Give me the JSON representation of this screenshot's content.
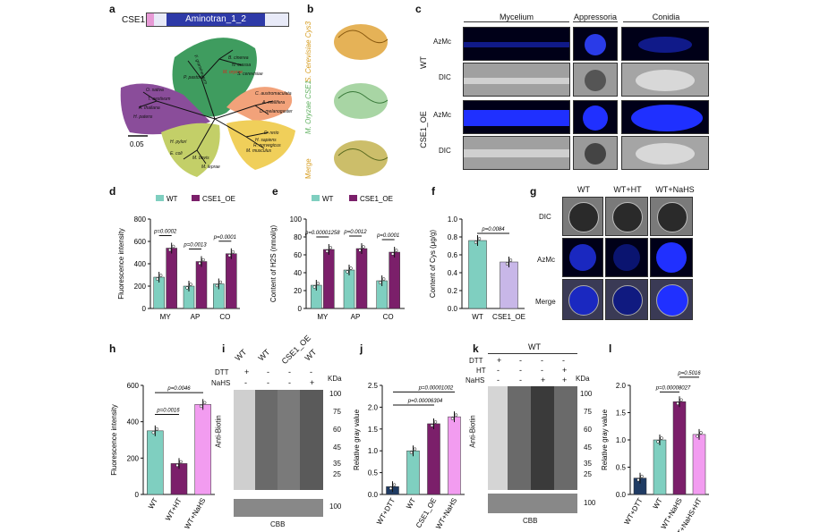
{
  "panels": {
    "a": "a",
    "b": "b",
    "c": "c",
    "d": "d",
    "e": "e",
    "f": "f",
    "g": "g",
    "h": "h",
    "i": "i",
    "j": "j",
    "k": "k",
    "l": "l"
  },
  "panel_a": {
    "gene_label": "CSE1",
    "domain_label": "Aminotran_1_2",
    "scale": "0.05",
    "clades": {
      "plants": [
        "O. sativa",
        "T. aestivum",
        "A. thaliana",
        "H. patens"
      ],
      "fungi": [
        "F. graminearum",
        "B. cinerea",
        "N. crassa",
        "M. oryzae",
        "S. cerevisiae",
        "P. pastoris"
      ],
      "insects": [
        "A. mellifera",
        "D. melanogaster",
        "C. austromaculata"
      ],
      "vertebrates": [
        "D. rerio",
        "H. sapiens",
        "M. musculus",
        "R. norvegicus"
      ],
      "bacteria": [
        "H. pylori",
        "E. coli",
        "M. bovis",
        "M. leprae"
      ]
    }
  },
  "panel_b": {
    "labels": [
      "S. Cerevisiae Cys3",
      "M. Oryzae CSE1",
      "Merge"
    ]
  },
  "panel_c": {
    "columns": [
      "Mycelium",
      "Appressoria",
      "Conidia"
    ],
    "groups": [
      "WT",
      "CSE1_OE"
    ],
    "rows": [
      "AzMc",
      "DIC"
    ]
  },
  "panel_d": {
    "chart_data": {
      "type": "bar",
      "categories": [
        "MY",
        "AP",
        "CO"
      ],
      "series": [
        {
          "name": "WT",
          "values": [
            280,
            200,
            220
          ]
        },
        {
          "name": "CSE1_OE",
          "values": [
            540,
            420,
            490
          ]
        }
      ],
      "ylabel": "Fluorescence intensity",
      "ylim": [
        0,
        800
      ],
      "yticks": [
        "0",
        "200",
        "400",
        "600",
        "800"
      ],
      "pvalues": [
        "p=0.0002",
        "p=0.0013",
        "p=0.0001"
      ]
    }
  },
  "panel_e": {
    "chart_data": {
      "type": "bar",
      "categories": [
        "MY",
        "AP",
        "CO"
      ],
      "series": [
        {
          "name": "WT",
          "values": [
            26,
            43,
            31
          ]
        },
        {
          "name": "CSE1_OE",
          "values": [
            66,
            67,
            63
          ]
        }
      ],
      "ylabel": "Content of H2S (nmol/g)",
      "ylim": [
        0,
        100
      ],
      "yticks": [
        "0",
        "20",
        "40",
        "60",
        "80",
        "100"
      ],
      "pvalues": [
        "p=0.00001258",
        "p=0.0012",
        "p=0.0001"
      ]
    }
  },
  "panel_f": {
    "chart_data": {
      "type": "bar",
      "categories": [
        "WT",
        "CSE1_OE"
      ],
      "values": [
        0.76,
        0.52
      ],
      "ylabel": "Content of Cys (μg/g)",
      "ylim": [
        0,
        1.0
      ],
      "yticks": [
        "0.0",
        "0.2",
        "0.4",
        "0.6",
        "0.8",
        "1.0"
      ],
      "pvalue": "p=0.0084"
    }
  },
  "panel_g": {
    "columns": [
      "WT",
      "WT+HT",
      "WT+NaHS"
    ],
    "rows": [
      "DIC",
      "AzMc",
      "Merge"
    ]
  },
  "panel_h": {
    "chart_data": {
      "type": "bar",
      "categories": [
        "WT",
        "WT+HT",
        "WT+NaHS"
      ],
      "values": [
        350,
        170,
        495
      ],
      "ylabel": "Fluorescence intensity",
      "ylim": [
        0,
        600
      ],
      "yticks": [
        "0",
        "200",
        "400",
        "600"
      ],
      "pvalues": [
        "p=0.0016",
        "p=0.0046"
      ]
    }
  },
  "panel_i": {
    "lanes": [
      "WT",
      "WT",
      "CSE1_OE",
      "WT"
    ],
    "dtt": [
      "+",
      "-",
      "-",
      "-"
    ],
    "nahs": [
      "-",
      "-",
      "-",
      "+"
    ],
    "row_dtt": "DTT",
    "row_nahs": "NaHS",
    "kda": "KDa",
    "markers": [
      "100",
      "75",
      "60",
      "45",
      "35",
      "25"
    ],
    "ylabel": "Anti-Biotin",
    "cbb": "CBB",
    "cbb_marker": "100"
  },
  "panel_j": {
    "chart_data": {
      "type": "bar",
      "categories": [
        "WT+DTT",
        "WT",
        "CSE1_OE",
        "WT+NaHS"
      ],
      "values": [
        0.18,
        1.0,
        1.62,
        1.78
      ],
      "ylabel": "Relative gray value",
      "ylim": [
        0,
        2.5
      ],
      "yticks": [
        "0.0",
        "0.5",
        "1.0",
        "1.5",
        "2.0",
        "2.5"
      ],
      "pvalues": [
        "p=0.00006304",
        "p=0.00001002"
      ]
    }
  },
  "panel_k": {
    "header": "WT",
    "row_dtt": "DTT",
    "row_ht": "HT",
    "row_nahs": "NaHS",
    "dtt": [
      "+",
      "-",
      "-",
      "-"
    ],
    "ht": [
      "-",
      "-",
      "-",
      "+"
    ],
    "nahs": [
      "-",
      "-",
      "+",
      "+"
    ],
    "kda": "KDa",
    "markers": [
      "100",
      "75",
      "60",
      "45",
      "35",
      "25"
    ],
    "ylabel": "Anti-Biotin",
    "cbb": "CBB",
    "cbb_marker": "100"
  },
  "panel_l": {
    "chart_data": {
      "type": "bar",
      "categories": [
        "WT+DTT",
        "WT",
        "WT+NaHS",
        "WT+NaHS+HT"
      ],
      "values": [
        0.3,
        1.0,
        1.7,
        1.1
      ],
      "ylabel": "Relative gray value",
      "ylim": [
        0,
        2.0
      ],
      "yticks": [
        "0.0",
        "0.5",
        "1.0",
        "1.5",
        "2.0"
      ],
      "pvalues": [
        "p=0.00008027",
        "p=0.5016"
      ]
    }
  },
  "colors": {
    "teal": "#7fcfc0",
    "purple": "#7b1f6a",
    "lavender": "#c8b7e8",
    "pink": "#f29cf0",
    "navy": "#1f3b63",
    "fungi": "#3f9c5f",
    "plants": "#8a4d9a",
    "insects": "#f2a27a",
    "vertebrates": "#f0cf5a",
    "bacteria": "#c3cf68"
  }
}
